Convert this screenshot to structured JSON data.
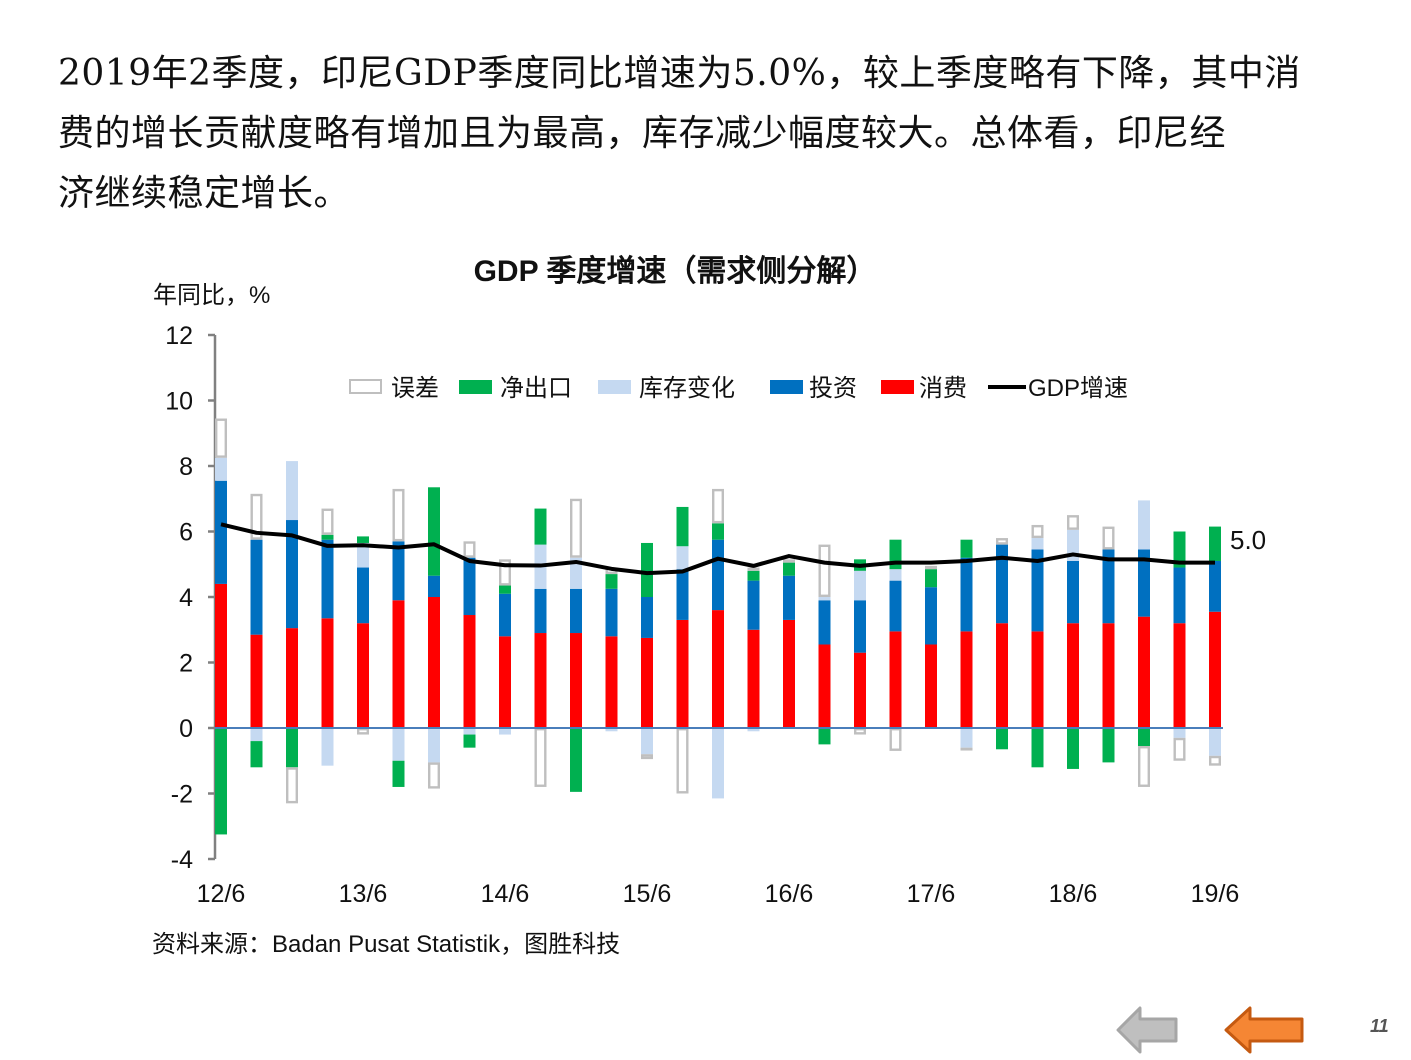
{
  "intro": {
    "lines": [
      "2019年2季度，印尼GDP季度同比增速为5.0%，较上季度略有下降，其中消",
      "费的增长贡献度略有增加且为最高，库存减少幅度较大。总体看，印尼经",
      "济继续稳定增长。"
    ]
  },
  "source_note": "资料来源：Badan Pusat Statistik，图胜科技",
  "page_number": "11",
  "navigation": {
    "prev_icon": "arrow-left-gray-icon",
    "next_icon": "arrow-left-orange-icon",
    "colors": {
      "prev": "#BFBFBF",
      "next": "#F58634"
    }
  },
  "chart_data": {
    "type": "bar",
    "stacked": true,
    "title": "GDP 季度增速（需求侧分解）",
    "ylabel": "年同比，%",
    "xlabel": "",
    "ylim": [
      -4,
      12
    ],
    "yticks": [
      12,
      10,
      8,
      6,
      4,
      2,
      0,
      -2,
      -4
    ],
    "grid": false,
    "legend_position": "top-center",
    "categories": [
      "12/6",
      "12/9",
      "12/12",
      "13/3",
      "13/6",
      "13/9",
      "13/12",
      "14/3",
      "14/6",
      "14/9",
      "14/12",
      "15/3",
      "15/6",
      "15/9",
      "15/12",
      "16/3",
      "16/6",
      "16/9",
      "16/12",
      "17/3",
      "17/6",
      "17/9",
      "17/12",
      "18/3",
      "18/6",
      "18/9",
      "18/12",
      "19/3",
      "19/6"
    ],
    "xtick_labels": [
      "12/6",
      "13/6",
      "14/6",
      "15/6",
      "16/6",
      "17/6",
      "18/6",
      "19/6"
    ],
    "series": [
      {
        "name": "消费",
        "kind": "bar",
        "color": "#FF0000",
        "values": [
          4.4,
          2.85,
          3.05,
          3.35,
          3.2,
          3.9,
          4.0,
          3.45,
          2.8,
          2.9,
          2.9,
          2.8,
          2.75,
          3.3,
          3.6,
          3.0,
          3.3,
          2.55,
          2.3,
          2.95,
          2.55,
          2.95,
          3.2,
          2.95,
          3.2,
          3.2,
          3.4,
          3.2,
          3.55
        ]
      },
      {
        "name": "投资",
        "kind": "bar",
        "color": "#0070C0",
        "values": [
          3.15,
          2.9,
          3.3,
          2.4,
          1.7,
          1.8,
          0.65,
          1.75,
          1.3,
          1.35,
          1.35,
          1.45,
          1.25,
          1.55,
          2.15,
          1.5,
          1.35,
          1.35,
          1.6,
          1.55,
          1.75,
          2.25,
          2.4,
          2.5,
          1.9,
          2.25,
          2.05,
          1.7,
          1.55
        ]
      },
      {
        "name": "库存变化",
        "kind": "bar",
        "color": "#C5D9F1",
        "values": [
          0.7,
          -0.4,
          1.8,
          -1.15,
          0.75,
          -1.0,
          -1.05,
          -0.2,
          -0.2,
          1.35,
          0.95,
          -0.1,
          -0.8,
          0.7,
          -2.15,
          -0.1,
          0.0,
          0.1,
          0.9,
          0.35,
          0.0,
          -0.6,
          0.0,
          0.35,
          0.95,
          0.0,
          1.5,
          -0.3,
          -0.85
        ]
      },
      {
        "name": "净出口",
        "kind": "bar",
        "color": "#00B050",
        "values": [
          -3.25,
          -0.8,
          -1.2,
          0.15,
          0.2,
          -0.8,
          2.7,
          -0.4,
          0.25,
          1.1,
          -1.95,
          0.45,
          1.65,
          1.2,
          0.5,
          0.3,
          0.4,
          -0.5,
          0.35,
          0.9,
          0.55,
          0.55,
          -0.65,
          -1.2,
          -1.25,
          -1.05,
          -0.55,
          1.1,
          1.05
        ]
      },
      {
        "name": "误差",
        "kind": "bar",
        "color": "#BFBFBF",
        "outline": true,
        "values": [
          1.2,
          1.4,
          -1.1,
          0.8,
          -0.2,
          1.6,
          -0.8,
          0.5,
          0.8,
          -1.8,
          1.8,
          0.2,
          -0.15,
          -2.0,
          1.05,
          0.1,
          0.1,
          1.6,
          -0.2,
          -0.7,
          0.1,
          -0.05,
          0.2,
          0.4,
          0.45,
          0.7,
          -1.25,
          -0.7,
          -0.3
        ]
      },
      {
        "name": "GDP增速",
        "kind": "line",
        "color": "#000000",
        "values": [
          6.22,
          5.96,
          5.88,
          5.56,
          5.58,
          5.51,
          5.61,
          5.1,
          4.97,
          4.96,
          5.07,
          4.86,
          4.73,
          4.78,
          5.17,
          4.95,
          5.25,
          5.05,
          4.95,
          5.05,
          5.05,
          5.1,
          5.2,
          5.1,
          5.3,
          5.15,
          5.15,
          5.05,
          5.05
        ]
      }
    ],
    "legend_order": [
      "误差",
      "净出口",
      "库存变化",
      "投资",
      "消费",
      "GDP增速"
    ],
    "annotations": [
      {
        "text": "5.0",
        "at": "19/6",
        "series": "GDP增速"
      }
    ]
  }
}
